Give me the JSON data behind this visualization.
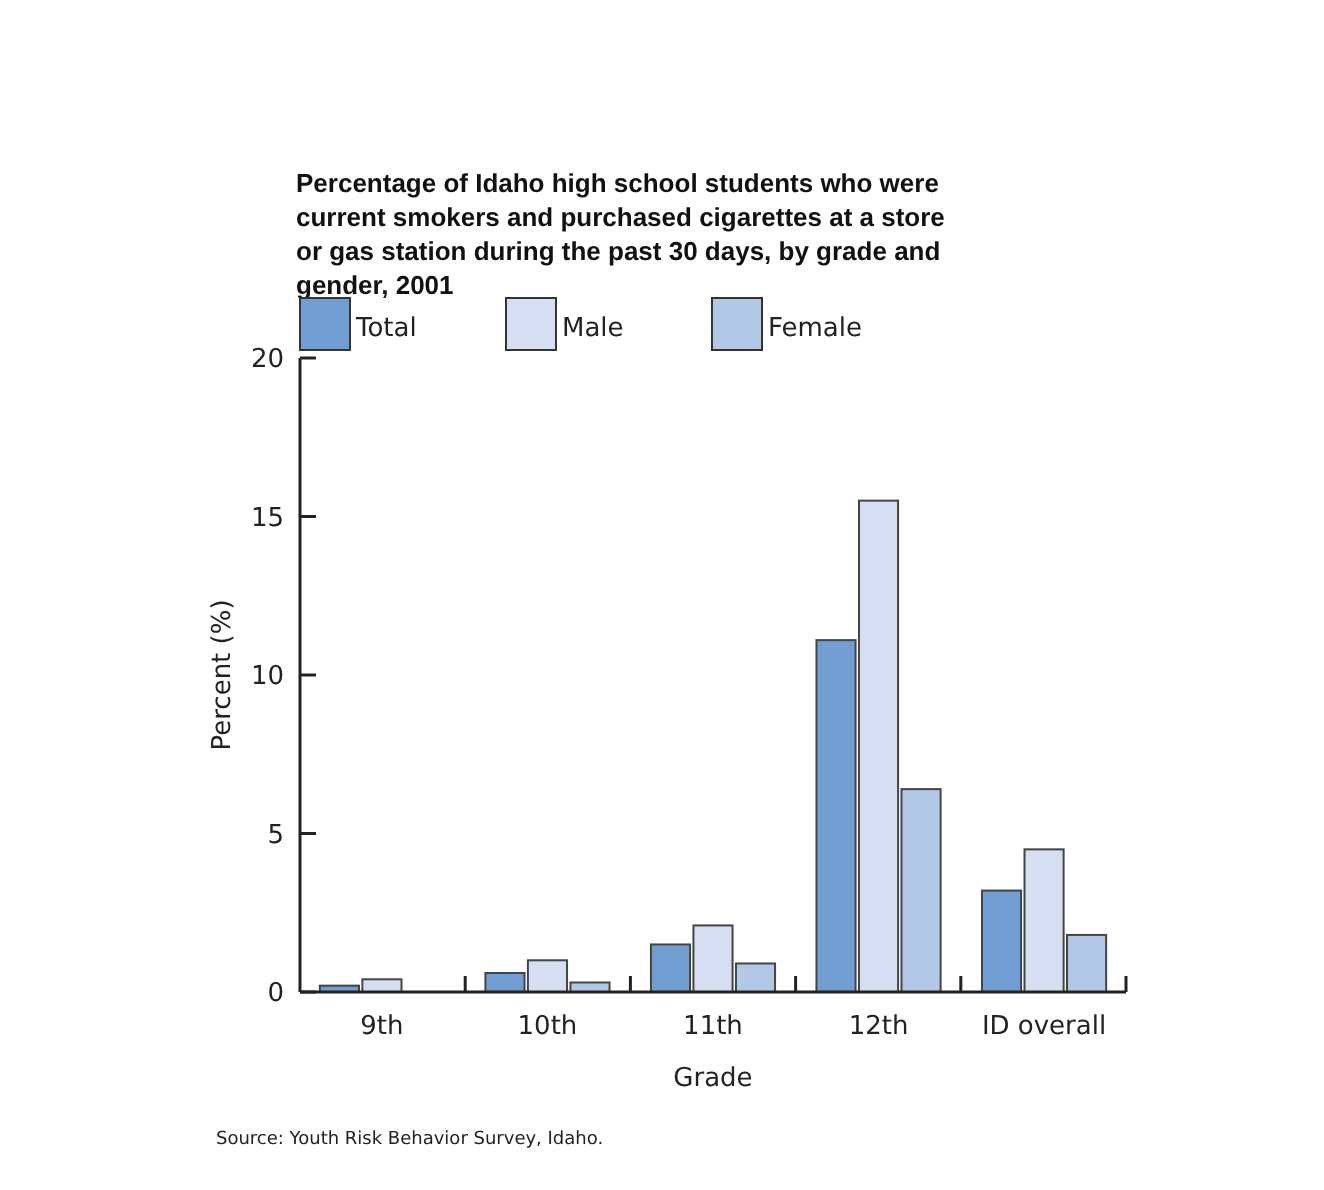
{
  "chart_data": {
    "type": "bar",
    "title": "Percentage of Idaho high school students who were current smokers and purchased cigarettes at a store or gas station during the past 30 days, by grade and gender, 2001",
    "xlabel": "Grade",
    "ylabel": "Percent (%)",
    "categories": [
      "9th",
      "10th",
      "11th",
      "12th",
      "ID overall"
    ],
    "series": [
      {
        "name": "Total",
        "color": "#729dd2",
        "values": [
          0.2,
          0.6,
          1.5,
          11.1,
          3.2
        ]
      },
      {
        "name": "Male",
        "color": "#d6dff2",
        "values": [
          0.4,
          1.0,
          2.1,
          15.5,
          4.5
        ]
      },
      {
        "name": "Female",
        "color": "#b3c7e6",
        "values": [
          0,
          0.3,
          0.9,
          6.4,
          1.8
        ]
      }
    ],
    "ylim": [
      0,
      20
    ],
    "yticks": [
      0,
      5,
      10,
      15,
      20
    ],
    "grid": false,
    "legend": "top left",
    "annotations": [
      "Source: Youth Risk Behavior Survey, Idaho."
    ]
  }
}
